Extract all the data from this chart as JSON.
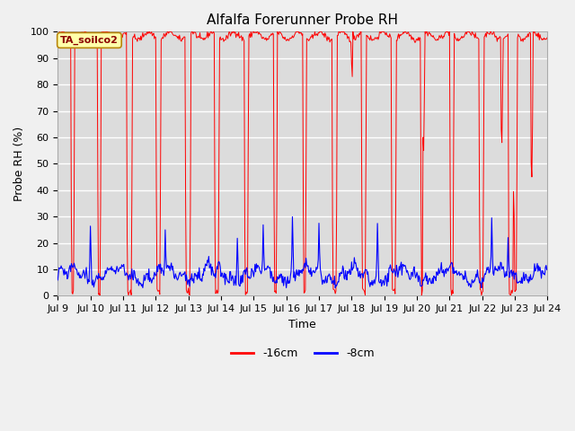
{
  "title": "Alfalfa Forerunner Probe RH",
  "xlabel": "Time",
  "ylabel": "Probe RH (%)",
  "ylim": [
    0,
    100
  ],
  "label_box_text": "TA_soilco2",
  "legend_labels": [
    "-16cm",
    "-8cm"
  ],
  "line_color_red": "#ff0000",
  "line_color_blue": "#0000ff",
  "plot_bg": "#dcdcdc",
  "grid_color": "#ffffff",
  "title_fontsize": 11,
  "axis_fontsize": 9,
  "tick_fontsize": 8
}
